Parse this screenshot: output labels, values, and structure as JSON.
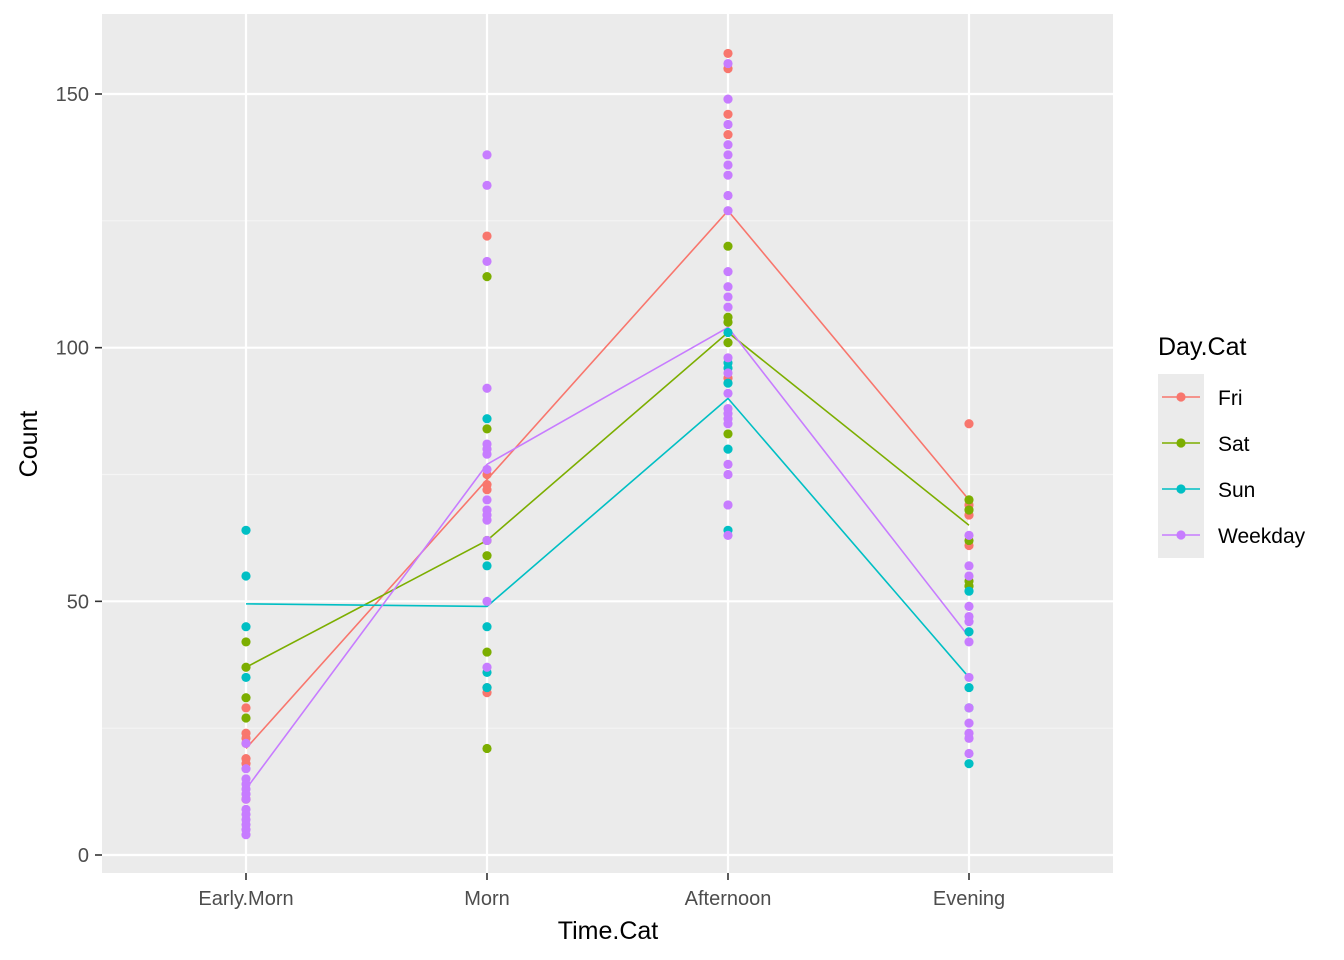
{
  "chart_data": {
    "type": "line",
    "title": "",
    "xlabel": "Time.Cat",
    "ylabel": "Count",
    "categories": [
      "Early.Morn",
      "Morn",
      "Afternoon",
      "Evening"
    ],
    "y_ticks": [
      0,
      50,
      100,
      150
    ],
    "ylim": [
      -3.5,
      165
    ],
    "grid": true,
    "legend": {
      "title": "Day.Cat",
      "position": "right"
    },
    "colors": {
      "panel_bg": "#ebebeb",
      "grid_major": "#ffffff",
      "grid_minor": "#f5f5f5"
    },
    "series": [
      {
        "name": "Fri",
        "color": "#F8766D",
        "line": [
          21,
          74,
          127,
          70
        ],
        "points": [
          [
            29,
            24,
            23,
            22,
            19,
            18,
            11
          ],
          [
            122,
            75,
            73,
            72,
            33,
            32
          ],
          [
            158,
            155,
            146,
            142,
            94
          ],
          [
            85,
            69,
            67,
            61
          ]
        ]
      },
      {
        "name": "Sat",
        "color": "#7CAE00",
        "line": [
          37,
          62,
          103,
          65
        ],
        "points": [
          [
            42,
            37,
            31,
            27
          ],
          [
            114,
            84,
            62,
            59,
            40,
            21
          ],
          [
            120,
            106,
            105,
            101,
            83
          ],
          [
            70,
            68,
            62,
            54,
            53
          ]
        ]
      },
      {
        "name": "Sun",
        "color": "#00BFC4",
        "line": [
          49.5,
          49,
          90,
          35
        ],
        "points": [
          [
            64,
            55,
            45,
            35
          ],
          [
            86,
            57,
            45,
            36,
            33
          ],
          [
            103,
            97,
            96,
            93,
            80,
            64
          ],
          [
            52,
            44,
            33,
            29,
            18
          ]
        ]
      },
      {
        "name": "Weekday",
        "color": "#C77CFF",
        "line": [
          13,
          77,
          104,
          43
        ],
        "points": [
          [
            22,
            17,
            15,
            14,
            13,
            12,
            11,
            9,
            8,
            7,
            6,
            5,
            4
          ],
          [
            138,
            132,
            117,
            92,
            81,
            80,
            79,
            76,
            70,
            68,
            67,
            66,
            62,
            50,
            37
          ],
          [
            156,
            149,
            144,
            140,
            138,
            136,
            134,
            130,
            127,
            115,
            112,
            110,
            108,
            98,
            95,
            91,
            88,
            87,
            86,
            85,
            77,
            75,
            69,
            63
          ],
          [
            63,
            57,
            55,
            49,
            47,
            46,
            42,
            35,
            29,
            26,
            24,
            23,
            20
          ]
        ]
      }
    ]
  }
}
